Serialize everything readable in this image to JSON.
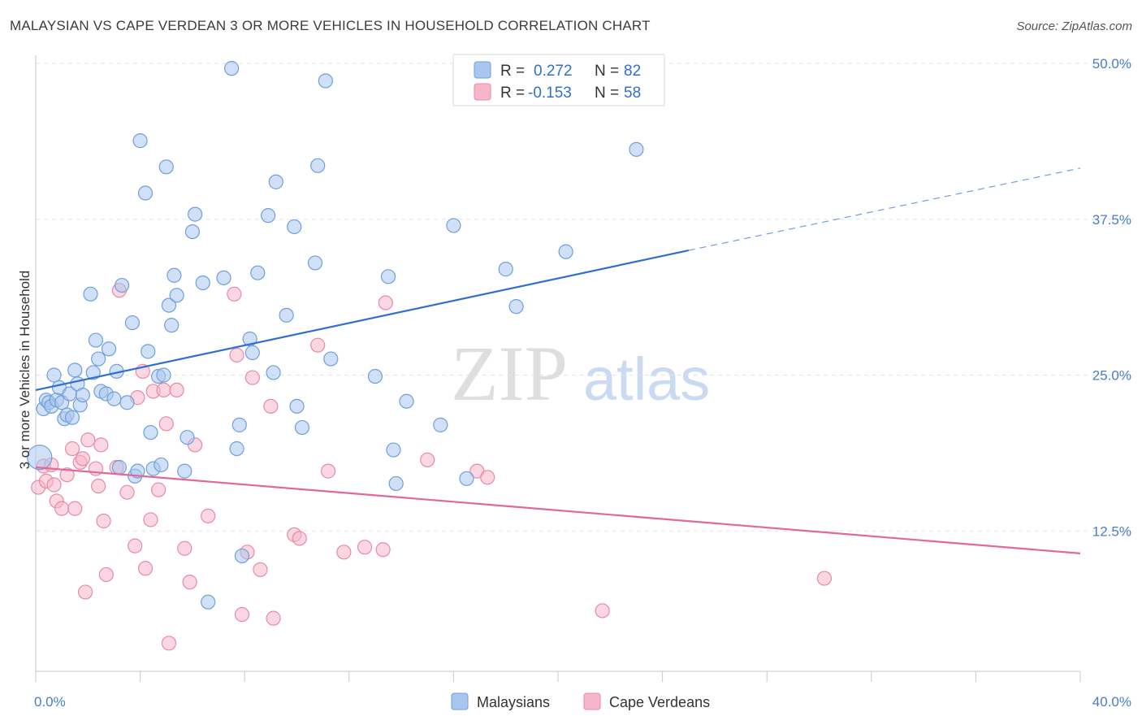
{
  "title": "MALAYSIAN VS CAPE VERDEAN 3 OR MORE VEHICLES IN HOUSEHOLD CORRELATION CHART",
  "source": "Source: ZipAtlas.com",
  "watermark": {
    "zip": "ZIP",
    "atlas": "atlas"
  },
  "legend": {
    "r_label": "R =",
    "n_label": "N =",
    "rows": [
      {
        "name": "Malaysians",
        "r": "0.272",
        "n": "82",
        "color": "#a9c6ef"
      },
      {
        "name": "Cape Verdeans",
        "r": "-0.153",
        "n": "58",
        "color": "#f5b6c9"
      }
    ]
  },
  "chart_data": {
    "type": "scatter",
    "xlabel": "",
    "ylabel": "3 or more Vehicles in Household",
    "xlim": [
      0,
      40
    ],
    "ylim": [
      0,
      52
    ],
    "x_tick_labels": [
      "0.0%",
      "40.0%"
    ],
    "y_ticks": [
      12.5,
      25.0,
      37.5,
      50.0
    ],
    "y_tick_labels": [
      "12.5%",
      "25.0%",
      "37.5%",
      "50.0%"
    ],
    "grid": true,
    "legend_position": "top-center",
    "series": [
      {
        "name": "Malaysians",
        "color": "#a9c6ef",
        "stroke": "#6f9fdc",
        "trend": {
          "x0": 0,
          "y0": 23.8,
          "x1": 25,
          "y1": 35.0,
          "dashed_to_x": 40,
          "dashed_to_y": 41.6,
          "color": "#2f6fcf"
        },
        "points": [
          [
            0.3,
            22.3
          ],
          [
            0.4,
            23.0
          ],
          [
            0.5,
            22.8
          ],
          [
            0.6,
            22.5
          ],
          [
            0.7,
            25.0
          ],
          [
            0.8,
            23.0
          ],
          [
            0.9,
            24.0
          ],
          [
            1.0,
            22.8
          ],
          [
            1.1,
            21.5
          ],
          [
            1.2,
            21.8
          ],
          [
            1.3,
            23.5
          ],
          [
            1.4,
            21.6
          ],
          [
            1.5,
            25.4
          ],
          [
            1.6,
            24.3
          ],
          [
            1.7,
            22.6
          ],
          [
            1.8,
            23.4
          ],
          [
            2.1,
            31.5
          ],
          [
            2.2,
            25.2
          ],
          [
            2.3,
            27.8
          ],
          [
            2.4,
            26.3
          ],
          [
            2.5,
            23.7
          ],
          [
            2.7,
            23.5
          ],
          [
            2.8,
            27.1
          ],
          [
            3.0,
            23.1
          ],
          [
            3.1,
            25.3
          ],
          [
            3.2,
            17.6
          ],
          [
            3.3,
            32.2
          ],
          [
            3.5,
            22.8
          ],
          [
            3.7,
            29.2
          ],
          [
            3.8,
            16.9
          ],
          [
            3.9,
            17.3
          ],
          [
            4.0,
            43.8
          ],
          [
            4.2,
            39.6
          ],
          [
            4.3,
            26.9
          ],
          [
            4.4,
            20.4
          ],
          [
            4.5,
            17.5
          ],
          [
            4.7,
            24.9
          ],
          [
            4.8,
            17.8
          ],
          [
            4.9,
            25.0
          ],
          [
            5.0,
            41.7
          ],
          [
            5.1,
            30.6
          ],
          [
            5.2,
            29.0
          ],
          [
            5.3,
            33.0
          ],
          [
            5.4,
            31.4
          ],
          [
            5.7,
            17.3
          ],
          [
            5.8,
            20.0
          ],
          [
            6.0,
            36.5
          ],
          [
            6.1,
            37.9
          ],
          [
            6.4,
            32.4
          ],
          [
            6.6,
            6.8
          ],
          [
            7.2,
            32.8
          ],
          [
            7.5,
            49.6
          ],
          [
            7.7,
            19.1
          ],
          [
            7.8,
            21.0
          ],
          [
            7.9,
            10.5
          ],
          [
            8.2,
            27.9
          ],
          [
            8.3,
            26.8
          ],
          [
            8.5,
            33.2
          ],
          [
            8.9,
            37.8
          ],
          [
            9.1,
            25.2
          ],
          [
            9.2,
            40.5
          ],
          [
            9.6,
            29.8
          ],
          [
            9.9,
            36.9
          ],
          [
            10.0,
            22.5
          ],
          [
            10.2,
            20.8
          ],
          [
            10.7,
            34.0
          ],
          [
            10.8,
            41.8
          ],
          [
            11.1,
            48.6
          ],
          [
            11.3,
            26.3
          ],
          [
            13.0,
            24.9
          ],
          [
            13.5,
            32.9
          ],
          [
            13.7,
            19.0
          ],
          [
            13.8,
            16.3
          ],
          [
            14.2,
            22.9
          ],
          [
            15.5,
            21.0
          ],
          [
            16.0,
            37.0
          ],
          [
            16.5,
            16.7
          ],
          [
            18.0,
            33.5
          ],
          [
            18.4,
            30.5
          ],
          [
            20.3,
            34.9
          ],
          [
            23.0,
            43.1
          ],
          [
            0.15,
            18.4
          ]
        ]
      },
      {
        "name": "Cape Verdeans",
        "color": "#f5b6c9",
        "stroke": "#e88aa8",
        "trend": {
          "x0": 0,
          "y0": 17.6,
          "x1": 40,
          "y1": 10.7,
          "color": "#e0689a"
        },
        "points": [
          [
            0.1,
            16.0
          ],
          [
            0.3,
            17.7
          ],
          [
            0.4,
            16.5
          ],
          [
            0.6,
            17.8
          ],
          [
            0.7,
            16.2
          ],
          [
            0.8,
            14.9
          ],
          [
            1.0,
            14.3
          ],
          [
            1.2,
            17.0
          ],
          [
            1.4,
            19.1
          ],
          [
            1.5,
            14.3
          ],
          [
            1.7,
            18.0
          ],
          [
            1.8,
            18.3
          ],
          [
            1.9,
            7.6
          ],
          [
            2.0,
            19.8
          ],
          [
            2.3,
            17.5
          ],
          [
            2.4,
            16.1
          ],
          [
            2.5,
            19.4
          ],
          [
            2.6,
            13.3
          ],
          [
            2.7,
            9.0
          ],
          [
            3.1,
            17.6
          ],
          [
            3.2,
            31.8
          ],
          [
            3.5,
            15.6
          ],
          [
            3.8,
            11.3
          ],
          [
            3.9,
            23.2
          ],
          [
            4.1,
            25.3
          ],
          [
            4.2,
            9.5
          ],
          [
            4.4,
            13.4
          ],
          [
            4.5,
            23.7
          ],
          [
            4.7,
            15.8
          ],
          [
            4.9,
            23.8
          ],
          [
            5.0,
            21.1
          ],
          [
            5.1,
            3.5
          ],
          [
            5.4,
            23.8
          ],
          [
            5.7,
            11.1
          ],
          [
            5.9,
            8.4
          ],
          [
            6.1,
            19.4
          ],
          [
            6.6,
            13.7
          ],
          [
            7.6,
            31.5
          ],
          [
            7.7,
            26.6
          ],
          [
            7.9,
            5.8
          ],
          [
            8.1,
            10.8
          ],
          [
            8.3,
            24.8
          ],
          [
            8.6,
            9.4
          ],
          [
            9.0,
            22.5
          ],
          [
            9.1,
            5.5
          ],
          [
            9.9,
            12.2
          ],
          [
            10.1,
            11.9
          ],
          [
            10.8,
            27.4
          ],
          [
            11.2,
            17.3
          ],
          [
            11.8,
            10.8
          ],
          [
            12.6,
            11.2
          ],
          [
            13.3,
            11.0
          ],
          [
            13.4,
            30.8
          ],
          [
            15.0,
            18.2
          ],
          [
            16.9,
            17.3
          ],
          [
            17.3,
            16.8
          ],
          [
            21.7,
            6.1
          ],
          [
            30.2,
            8.7
          ]
        ]
      }
    ]
  }
}
